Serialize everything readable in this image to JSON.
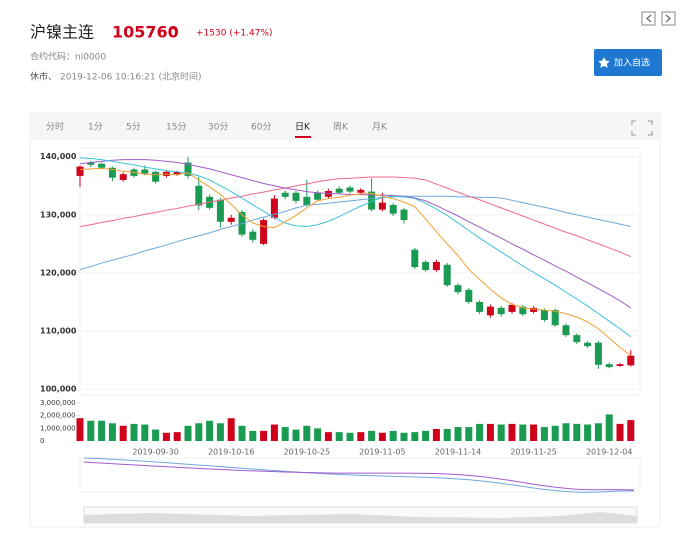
{
  "header": {
    "title": "沪镍主连",
    "price": 105760,
    "change": "+1530 (+1.47%)",
    "contract": "合约代码：ni0000",
    "status": "休市、",
    "time": "2019-12-06 10:16:21 (北京时间)",
    "button": "加入自选"
  },
  "tabs": [
    "分时",
    "1分",
    "5分",
    "15分",
    "30分",
    "60分",
    "日K",
    "周K",
    "月K"
  ],
  "active_tab": 6,
  "chart_data": {
    "type": "candlestick",
    "up_color": "#d0021b",
    "down_color": "#1a9b52",
    "categories": [
      null,
      null,
      null,
      null,
      null,
      null,
      null,
      "2019-09-30",
      null,
      null,
      null,
      null,
      null,
      null,
      "2019-10-16",
      null,
      null,
      null,
      null,
      null,
      null,
      "2019-10-25",
      null,
      null,
      null,
      null,
      null,
      null,
      "2019-11-05",
      null,
      null,
      null,
      null,
      null,
      null,
      "2019-11-14",
      null,
      null,
      null,
      null,
      null,
      null,
      "2019-11-25",
      null,
      null,
      null,
      null,
      null,
      null,
      "2019-12-04",
      null,
      null
    ],
    "open": [
      136700,
      139000,
      138800,
      138100,
      136000,
      137800,
      137800,
      137400,
      136700,
      137000,
      139000,
      135000,
      133100,
      132600,
      128800,
      130500,
      127100,
      125000,
      129500,
      133800,
      133800,
      133100,
      133800,
      133100,
      134500,
      134700,
      133800,
      134000,
      130900,
      131700,
      130900,
      124000,
      121900,
      120500,
      121400,
      117900,
      117100,
      115000,
      112700,
      114000,
      113300,
      114200,
      113300,
      113600,
      113600,
      111000,
      109300,
      108000,
      108000,
      104300,
      104000,
      104100
    ],
    "high": [
      138500,
      139300,
      139000,
      138300,
      137300,
      138100,
      138500,
      137600,
      137700,
      137600,
      140000,
      136500,
      133500,
      132900,
      130000,
      130800,
      127500,
      129400,
      133400,
      134200,
      134100,
      136000,
      134200,
      134500,
      134900,
      135000,
      134600,
      136300,
      133800,
      132000,
      131200,
      124300,
      122200,
      122300,
      121700,
      118200,
      117400,
      115300,
      114600,
      114300,
      114800,
      114500,
      114300,
      113900,
      113900,
      111300,
      109600,
      108300,
      108300,
      104600,
      104500,
      106700
    ],
    "low": [
      134800,
      138200,
      137800,
      135800,
      135700,
      136400,
      136800,
      135400,
      136400,
      136700,
      136200,
      130800,
      130900,
      127800,
      128300,
      126200,
      125200,
      124800,
      129200,
      132700,
      132000,
      131400,
      132300,
      132800,
      133500,
      133700,
      133500,
      130600,
      130600,
      129800,
      128500,
      120700,
      120200,
      120200,
      117600,
      116300,
      114700,
      112900,
      112300,
      112500,
      113000,
      112600,
      113000,
      111600,
      110700,
      109000,
      107800,
      107100,
      103500,
      103600,
      103800,
      103900
    ],
    "close": [
      138300,
      138600,
      138100,
      136400,
      137000,
      136700,
      137100,
      135700,
      137400,
      137400,
      136700,
      131600,
      131200,
      128800,
      129500,
      126600,
      125700,
      129100,
      132800,
      133100,
      132400,
      131700,
      132600,
      134100,
      133800,
      134000,
      134300,
      130900,
      132100,
      130200,
      129100,
      121000,
      120500,
      121900,
      117900,
      116700,
      115000,
      113300,
      114200,
      112900,
      114500,
      112900,
      114000,
      111900,
      111000,
      109300,
      108100,
      107400,
      104200,
      103800,
      104300,
      105760
    ],
    "lines": [
      {
        "color": "#6fa8dc",
        "values": [
          120600,
          121100,
          121700,
          122200,
          122700,
          123200,
          123800,
          124300,
          124800,
          125400,
          125900,
          126400,
          126900,
          127500,
          128000,
          128500,
          129100,
          129600,
          130100,
          130600,
          131200,
          131700,
          131800,
          132000,
          132200,
          132400,
          132600,
          132800,
          133000,
          133100,
          133200,
          133200,
          133200,
          133200,
          133200,
          133100,
          133100,
          133000,
          133000,
          132900,
          132500,
          132100,
          131700,
          131300,
          130900,
          130400,
          130000,
          129600,
          129200,
          128800,
          128400,
          128000
        ]
      },
      {
        "color": "#ef6a8a",
        "values": [
          128000,
          128300,
          128700,
          129000,
          129400,
          129700,
          130100,
          130400,
          130800,
          131100,
          131500,
          131800,
          132200,
          132500,
          132900,
          133200,
          133600,
          133900,
          134300,
          134600,
          135000,
          135300,
          135700,
          136000,
          136200,
          136300,
          136400,
          136500,
          136500,
          136500,
          136400,
          136300,
          136000,
          135300,
          134600,
          133900,
          133200,
          132600,
          131900,
          131200,
          130500,
          129800,
          129100,
          128400,
          127700,
          127000,
          126400,
          125700,
          125000,
          124300,
          123600,
          122800
        ]
      },
      {
        "color": "#a35bc9",
        "values": [
          138800,
          139000,
          139200,
          139400,
          139500,
          139500,
          139500,
          139400,
          139200,
          139000,
          138700,
          138300,
          137900,
          137400,
          136900,
          136400,
          135900,
          135400,
          135000,
          134600,
          134300,
          134000,
          133800,
          133700,
          133600,
          133500,
          133500,
          133400,
          133400,
          133300,
          133200,
          132900,
          132400,
          131600,
          130700,
          129800,
          128800,
          127900,
          126900,
          126000,
          125000,
          124100,
          123100,
          122200,
          121200,
          120300,
          119300,
          118300,
          117300,
          116300,
          115200,
          114000
        ]
      },
      {
        "color": "#3cc3d9",
        "values": [
          139800,
          139700,
          139500,
          139200,
          138900,
          138600,
          138200,
          137900,
          137600,
          137400,
          137200,
          136700,
          136000,
          135000,
          134000,
          132900,
          131700,
          130600,
          129500,
          128600,
          128100,
          128000,
          128300,
          128900,
          129700,
          130600,
          131500,
          132300,
          133000,
          133200,
          133100,
          132800,
          132000,
          131000,
          129900,
          128600,
          127300,
          126000,
          124800,
          123600,
          122400,
          121200,
          120100,
          119000,
          117900,
          116700,
          115500,
          114300,
          113000,
          111700,
          110400,
          109000
        ]
      },
      {
        "color": "#f0a030",
        "values": [
          137800,
          137900,
          138000,
          137800,
          137500,
          137300,
          137000,
          136900,
          137000,
          136900,
          137200,
          136000,
          134800,
          133500,
          131800,
          130000,
          128600,
          128000,
          127800,
          128800,
          129900,
          131200,
          132400,
          132800,
          133000,
          133400,
          133600,
          133700,
          133200,
          132800,
          132200,
          131400,
          129300,
          127100,
          125000,
          123000,
          120600,
          118900,
          117200,
          115700,
          114600,
          114000,
          113800,
          113600,
          113400,
          113000,
          112400,
          111600,
          110400,
          108800,
          107200,
          105800
        ]
      }
    ],
    "ylim": [
      99000,
      141500
    ],
    "yticks": [
      {
        "value": 100000,
        "label": "100,000"
      },
      {
        "value": 110000,
        "label": "110,000"
      },
      {
        "value": 120000,
        "label": "120,000"
      },
      {
        "value": 130000,
        "label": "130,000"
      },
      {
        "value": 140000,
        "label": "140,000"
      }
    ],
    "volume": {
      "values": [
        1800000,
        1600000,
        1600000,
        1400000,
        1200000,
        1350000,
        1300000,
        900000,
        650000,
        700000,
        1200000,
        1400000,
        1600000,
        1400000,
        1800000,
        1200000,
        800000,
        800000,
        1300000,
        1100000,
        900000,
        1200000,
        1000000,
        700000,
        700000,
        650000,
        700000,
        800000,
        650000,
        800000,
        650000,
        700000,
        800000,
        950000,
        950000,
        1100000,
        1100000,
        1350000,
        1350000,
        1300000,
        1350000,
        1300000,
        1300000,
        1100000,
        1200000,
        1400000,
        1350000,
        1300000,
        1400000,
        2100000,
        1350000,
        1650000
      ],
      "ylim": [
        0,
        3000000
      ],
      "yticks": [
        0,
        {
          "value": 1000000,
          "label": "1,000,000"
        },
        {
          "value": 2000000,
          "label": "2,000,000"
        },
        {
          "value": 3000000,
          "label": "3,000,000"
        }
      ]
    }
  }
}
